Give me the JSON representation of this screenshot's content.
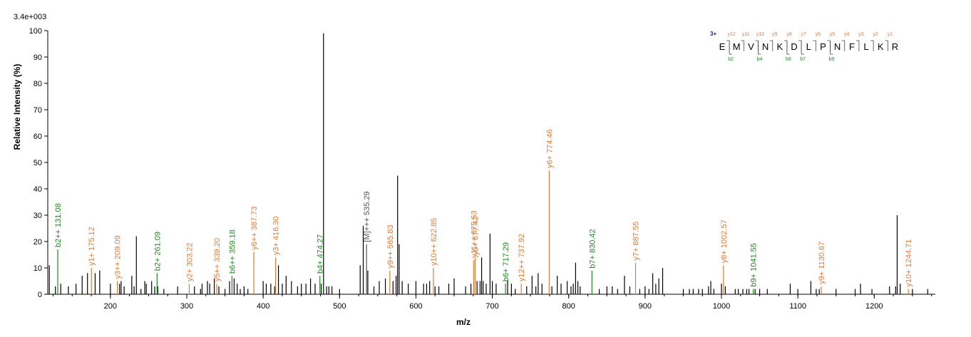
{
  "chart_data": {
    "type": "bar",
    "scale_label": "3.4e+003",
    "xlabel": "m/z",
    "ylabel": "Relative   Intensity (%)",
    "xlim": [
      118,
      1280
    ],
    "ylim": [
      0,
      100
    ],
    "x_ticks": [
      200,
      300,
      400,
      500,
      600,
      700,
      800,
      900,
      1000,
      1100,
      1200
    ],
    "y_ticks": [
      0,
      10,
      20,
      30,
      40,
      50,
      60,
      70,
      80,
      90,
      100
    ],
    "colors": {
      "b": "#1f8a1f",
      "y": "#e07b39",
      "precursor": "#555555",
      "unassigned": "#000000"
    },
    "annotated_peaks": [
      {
        "mz": 131.08,
        "intensity": 17,
        "label": "b2++ 131.08",
        "ion": "b"
      },
      {
        "mz": 175.12,
        "intensity": 10,
        "label": "y1+ 175.12",
        "ion": "y"
      },
      {
        "mz": 209.09,
        "intensity": 5,
        "label": "y3++ 209.09",
        "ion": "y"
      },
      {
        "mz": 261.09,
        "intensity": 8,
        "label": "b2+ 261.09",
        "ion": "b"
      },
      {
        "mz": 303.22,
        "intensity": 4,
        "label": "y2+ 303.22",
        "ion": "y"
      },
      {
        "mz": 339.2,
        "intensity": 4,
        "label": "y5++ 339.20",
        "ion": "y"
      },
      {
        "mz": 359.18,
        "intensity": 7,
        "label": "b6++ 359.18",
        "ion": "b"
      },
      {
        "mz": 387.73,
        "intensity": 16,
        "label": "y6++ 387.73",
        "ion": "y"
      },
      {
        "mz": 416.3,
        "intensity": 14,
        "label": "y3+ 416.30",
        "ion": "y"
      },
      {
        "mz": 474.27,
        "intensity": 7,
        "label": "b4+ 474.27",
        "ion": "b"
      },
      {
        "mz": 535.29,
        "intensity": 19,
        "label": "[M]+++ 535.29",
        "ion": "precursor"
      },
      {
        "mz": 565.83,
        "intensity": 9,
        "label": "y9++ 565.83",
        "ion": "y"
      },
      {
        "mz": 622.85,
        "intensity": 10,
        "label": "y10++ 622.85",
        "ion": "y"
      },
      {
        "mz": 675.53,
        "intensity": 13,
        "label": "y11++ 675.53",
        "ion": "y"
      },
      {
        "mz": 677.42,
        "intensity": 14,
        "label": "y5+ 677.42",
        "ion": "y"
      },
      {
        "mz": 717.29,
        "intensity": 4,
        "label": "b6+ 717.29",
        "ion": "b"
      },
      {
        "mz": 737.92,
        "intensity": 4,
        "label": "y12++ 737.92",
        "ion": "y"
      },
      {
        "mz": 774.46,
        "intensity": 47,
        "label": "y6+ 774.46",
        "ion": "y"
      },
      {
        "mz": 830.42,
        "intensity": 9,
        "label": "b7+ 830.42",
        "ion": "b"
      },
      {
        "mz": 887.55,
        "intensity": 12,
        "label": "y7+ 887.55",
        "ion": "y"
      },
      {
        "mz": 1002.57,
        "intensity": 11,
        "label": "y8+ 1002.57",
        "ion": "y"
      },
      {
        "mz": 1041.55,
        "intensity": 2,
        "label": "b9+ 1041.55",
        "ion": "b"
      },
      {
        "mz": 1130.67,
        "intensity": 3,
        "label": "y9+ 1130.67",
        "ion": "y"
      },
      {
        "mz": 1244.71,
        "intensity": 2,
        "label": "y10+ 1244.71",
        "ion": "y"
      }
    ],
    "unlabeled_peaks": [
      [
        120,
        11
      ],
      [
        128,
        3
      ],
      [
        135,
        4
      ],
      [
        145,
        3
      ],
      [
        155,
        4
      ],
      [
        163,
        7
      ],
      [
        170,
        8
      ],
      [
        180,
        8
      ],
      [
        186,
        9
      ],
      [
        200,
        4
      ],
      [
        212,
        4
      ],
      [
        214,
        5
      ],
      [
        218,
        3
      ],
      [
        228,
        7
      ],
      [
        231,
        3
      ],
      [
        234,
        22
      ],
      [
        240,
        2
      ],
      [
        245,
        5
      ],
      [
        247,
        4
      ],
      [
        254,
        5
      ],
      [
        258,
        3
      ],
      [
        262,
        3
      ],
      [
        270,
        2
      ],
      [
        288,
        3
      ],
      [
        310,
        3
      ],
      [
        318,
        2
      ],
      [
        320,
        4
      ],
      [
        327,
        5
      ],
      [
        330,
        4
      ],
      [
        336,
        6
      ],
      [
        342,
        3
      ],
      [
        350,
        2
      ],
      [
        356,
        5
      ],
      [
        362,
        6
      ],
      [
        366,
        4
      ],
      [
        370,
        2
      ],
      [
        375,
        3
      ],
      [
        380,
        2
      ],
      [
        400,
        5
      ],
      [
        404,
        4
      ],
      [
        410,
        4
      ],
      [
        415,
        3
      ],
      [
        420,
        11
      ],
      [
        425,
        4
      ],
      [
        430,
        7
      ],
      [
        437,
        5
      ],
      [
        445,
        3
      ],
      [
        450,
        4
      ],
      [
        456,
        4
      ],
      [
        462,
        6
      ],
      [
        468,
        4
      ],
      [
        476,
        4
      ],
      [
        479,
        99
      ],
      [
        483,
        3
      ],
      [
        486,
        3
      ],
      [
        490,
        3
      ],
      [
        500,
        2
      ],
      [
        527,
        11
      ],
      [
        531,
        26
      ],
      [
        537,
        9
      ],
      [
        545,
        3
      ],
      [
        552,
        5
      ],
      [
        560,
        6
      ],
      [
        570,
        5
      ],
      [
        574,
        7
      ],
      [
        576,
        45
      ],
      [
        578,
        19
      ],
      [
        582,
        5
      ],
      [
        590,
        4
      ],
      [
        600,
        5
      ],
      [
        610,
        4
      ],
      [
        614,
        4
      ],
      [
        618,
        5
      ],
      [
        625,
        3
      ],
      [
        630,
        3
      ],
      [
        643,
        4
      ],
      [
        650,
        6
      ],
      [
        665,
        3
      ],
      [
        672,
        4
      ],
      [
        680,
        5
      ],
      [
        684,
        5
      ],
      [
        686,
        14
      ],
      [
        688,
        5
      ],
      [
        692,
        4
      ],
      [
        697,
        23
      ],
      [
        700,
        5
      ],
      [
        705,
        4
      ],
      [
        720,
        5
      ],
      [
        725,
        4
      ],
      [
        730,
        2
      ],
      [
        745,
        3
      ],
      [
        752,
        7
      ],
      [
        757,
        3
      ],
      [
        760,
        8
      ],
      [
        765,
        4
      ],
      [
        778,
        3
      ],
      [
        785,
        7
      ],
      [
        790,
        4
      ],
      [
        798,
        5
      ],
      [
        803,
        3
      ],
      [
        806,
        4
      ],
      [
        809,
        12
      ],
      [
        812,
        5
      ],
      [
        815,
        3
      ],
      [
        840,
        2
      ],
      [
        850,
        3
      ],
      [
        857,
        3
      ],
      [
        864,
        2
      ],
      [
        873,
        7
      ],
      [
        880,
        3
      ],
      [
        893,
        2
      ],
      [
        900,
        3
      ],
      [
        905,
        2
      ],
      [
        910,
        8
      ],
      [
        914,
        4
      ],
      [
        918,
        6
      ],
      [
        923,
        10
      ],
      [
        950,
        2
      ],
      [
        958,
        2
      ],
      [
        963,
        2
      ],
      [
        970,
        2
      ],
      [
        975,
        2
      ],
      [
        983,
        3
      ],
      [
        986,
        5
      ],
      [
        990,
        2
      ],
      [
        1000,
        4
      ],
      [
        1005,
        3
      ],
      [
        1018,
        2
      ],
      [
        1022,
        2
      ],
      [
        1028,
        2
      ],
      [
        1033,
        2
      ],
      [
        1036,
        2
      ],
      [
        1044,
        2
      ],
      [
        1050,
        2
      ],
      [
        1060,
        2
      ],
      [
        1090,
        4
      ],
      [
        1100,
        2
      ],
      [
        1117,
        5
      ],
      [
        1124,
        2
      ],
      [
        1128,
        2
      ],
      [
        1150,
        2
      ],
      [
        1175,
        2
      ],
      [
        1182,
        4
      ],
      [
        1197,
        2
      ],
      [
        1220,
        3
      ],
      [
        1228,
        3
      ],
      [
        1230,
        30
      ],
      [
        1234,
        4
      ],
      [
        1250,
        2
      ],
      [
        1270,
        2
      ]
    ]
  },
  "sequence_panel": {
    "charge": "3+",
    "residues": [
      "E",
      "M",
      "V",
      "N",
      "K",
      "D",
      "L",
      "P",
      "N",
      "F",
      "L",
      "K",
      "R"
    ],
    "y_labels": [
      "y12",
      "y11",
      "y10",
      "y9",
      "y8",
      "y7",
      "y6",
      "y5",
      "y4",
      "y3",
      "y2",
      "y1"
    ],
    "b_labels": [
      "b2",
      "",
      "b4",
      "",
      "b6",
      "b7",
      "",
      "b9",
      "",
      "",
      "",
      ""
    ]
  }
}
